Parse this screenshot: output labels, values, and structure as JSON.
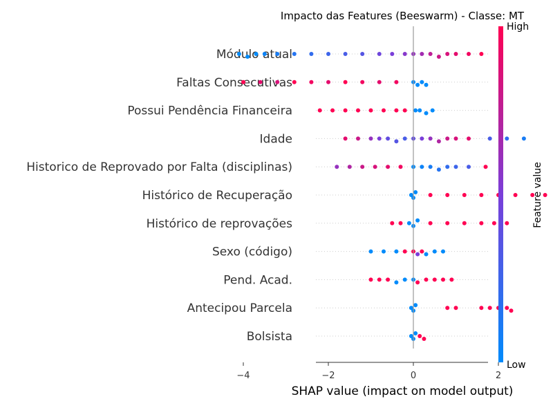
{
  "chart_data": {
    "type": "scatter",
    "subtype": "beeswarm",
    "title": "Impacto das Features (Beeswarm) - Classe: MT",
    "xlabel": "SHAP value (impact on model output)",
    "ylabel": "",
    "xlim": [
      -4.6,
      3.4
    ],
    "xticks": [
      {
        "value": -4,
        "label": "−4"
      },
      {
        "value": -2,
        "label": "−2"
      },
      {
        "value": 0,
        "label": "0"
      },
      {
        "value": 2,
        "label": "2"
      }
    ],
    "colorbar": {
      "label": "Feature value",
      "high_label": "High",
      "low_label": "Low",
      "low_color": "#008bfb",
      "high_color": "#ff0052"
    },
    "zero_line_color": "#999999",
    "grid": false,
    "features": [
      {
        "name": "Módulo atual",
        "points": [
          [
            -4.1,
            0.0
          ],
          [
            -3.9,
            0.0
          ],
          [
            -3.7,
            0.0
          ],
          [
            -3.5,
            0.05
          ],
          [
            -3.2,
            0.1
          ],
          [
            -2.8,
            0.15
          ],
          [
            -2.4,
            0.2
          ],
          [
            -2.0,
            0.25
          ],
          [
            -1.6,
            0.3
          ],
          [
            -1.2,
            0.35
          ],
          [
            -0.8,
            0.45
          ],
          [
            -0.5,
            0.5
          ],
          [
            -0.2,
            0.55
          ],
          [
            0.0,
            0.6
          ],
          [
            0.2,
            0.65
          ],
          [
            0.4,
            0.75
          ],
          [
            0.6,
            0.8
          ],
          [
            0.8,
            0.85
          ],
          [
            1.0,
            0.9
          ],
          [
            1.3,
            0.95
          ],
          [
            1.6,
            1.0
          ]
        ]
      },
      {
        "name": "Faltas Consecutivas",
        "points": [
          [
            -4.0,
            1.0
          ],
          [
            -3.6,
            0.9
          ],
          [
            -3.2,
            0.85
          ],
          [
            -2.8,
            1.0
          ],
          [
            -2.4,
            0.95
          ],
          [
            -2.0,
            0.9
          ],
          [
            -1.6,
            1.0
          ],
          [
            -1.2,
            0.95
          ],
          [
            -0.8,
            0.9
          ],
          [
            -0.4,
            0.95
          ],
          [
            0.0,
            0.0
          ],
          [
            0.1,
            0.0
          ],
          [
            0.2,
            0.0
          ],
          [
            0.3,
            0.0
          ]
        ]
      },
      {
        "name": "Possui Pendência Financeira",
        "points": [
          [
            -2.2,
            1.0
          ],
          [
            -1.9,
            1.0
          ],
          [
            -1.6,
            1.0
          ],
          [
            -1.3,
            1.0
          ],
          [
            -1.0,
            1.0
          ],
          [
            -0.7,
            1.0
          ],
          [
            -0.4,
            1.0
          ],
          [
            -0.2,
            1.0
          ],
          [
            0.05,
            0.0
          ],
          [
            0.15,
            0.0
          ],
          [
            0.3,
            0.0
          ],
          [
            0.45,
            0.0
          ]
        ]
      },
      {
        "name": "Idade",
        "points": [
          [
            -1.6,
            0.9
          ],
          [
            -1.3,
            0.8
          ],
          [
            -1.0,
            0.6
          ],
          [
            -0.8,
            0.5
          ],
          [
            -0.6,
            0.4
          ],
          [
            -0.4,
            0.35
          ],
          [
            -0.2,
            0.3
          ],
          [
            0.0,
            0.4
          ],
          [
            0.2,
            0.5
          ],
          [
            0.4,
            0.6
          ],
          [
            0.6,
            0.7
          ],
          [
            0.8,
            0.8
          ],
          [
            1.0,
            0.85
          ],
          [
            1.3,
            0.9
          ],
          [
            1.8,
            0.3
          ],
          [
            2.2,
            0.2
          ],
          [
            2.6,
            0.1
          ]
        ]
      },
      {
        "name": "Historico de Reprovado por Falta (disciplinas)",
        "points": [
          [
            -1.8,
            0.6
          ],
          [
            -1.5,
            0.7
          ],
          [
            -1.2,
            0.8
          ],
          [
            -0.9,
            0.85
          ],
          [
            -0.6,
            0.9
          ],
          [
            -0.3,
            0.95
          ],
          [
            0.0,
            0.0
          ],
          [
            0.2,
            0.05
          ],
          [
            0.4,
            0.1
          ],
          [
            0.6,
            0.15
          ],
          [
            0.8,
            0.2
          ],
          [
            1.0,
            0.25
          ],
          [
            1.3,
            0.3
          ],
          [
            1.7,
            1.0
          ]
        ]
      },
      {
        "name": "Histórico de Recuperação",
        "points": [
          [
            -0.05,
            0.0
          ],
          [
            0.0,
            0.0
          ],
          [
            0.05,
            0.0
          ],
          [
            0.4,
            1.0
          ],
          [
            0.8,
            1.0
          ],
          [
            1.2,
            1.0
          ],
          [
            1.6,
            1.0
          ],
          [
            2.0,
            1.0
          ],
          [
            2.4,
            1.0
          ],
          [
            2.8,
            1.0
          ],
          [
            3.1,
            1.0
          ]
        ]
      },
      {
        "name": "Histórico de reprovações",
        "points": [
          [
            -0.5,
            1.0
          ],
          [
            -0.3,
            1.0
          ],
          [
            -0.1,
            0.0
          ],
          [
            0.0,
            0.0
          ],
          [
            0.1,
            0.0
          ],
          [
            0.4,
            1.0
          ],
          [
            0.8,
            1.0
          ],
          [
            1.2,
            1.0
          ],
          [
            1.6,
            1.0
          ],
          [
            1.9,
            1.0
          ],
          [
            2.2,
            1.0
          ]
        ]
      },
      {
        "name": "Sexo (código)",
        "points": [
          [
            -1.0,
            0.0
          ],
          [
            -0.7,
            0.0
          ],
          [
            -0.4,
            0.0
          ],
          [
            -0.2,
            1.0
          ],
          [
            0.0,
            1.0
          ],
          [
            0.1,
            0.5
          ],
          [
            0.2,
            1.0
          ],
          [
            0.3,
            0.0
          ],
          [
            0.5,
            0.0
          ],
          [
            0.7,
            0.0
          ]
        ]
      },
      {
        "name": "Pend. Acad.",
        "points": [
          [
            -1.0,
            1.0
          ],
          [
            -0.8,
            1.0
          ],
          [
            -0.6,
            1.0
          ],
          [
            -0.4,
            0.0
          ],
          [
            -0.2,
            0.0
          ],
          [
            0.0,
            0.0
          ],
          [
            0.1,
            1.0
          ],
          [
            0.3,
            1.0
          ],
          [
            0.5,
            1.0
          ],
          [
            0.7,
            1.0
          ],
          [
            0.9,
            1.0
          ]
        ]
      },
      {
        "name": "Antecipou Parcela",
        "points": [
          [
            -0.05,
            0.0
          ],
          [
            0.0,
            0.0
          ],
          [
            0.05,
            0.0
          ],
          [
            0.8,
            1.0
          ],
          [
            1.0,
            1.0
          ],
          [
            1.6,
            1.0
          ],
          [
            1.8,
            1.0
          ],
          [
            2.0,
            1.0
          ],
          [
            2.2,
            1.0
          ],
          [
            2.3,
            1.0
          ]
        ]
      },
      {
        "name": "Bolsista",
        "points": [
          [
            -0.05,
            0.0
          ],
          [
            0.0,
            0.0
          ],
          [
            0.05,
            0.0
          ],
          [
            0.15,
            1.0
          ],
          [
            0.25,
            1.0
          ]
        ]
      }
    ]
  }
}
